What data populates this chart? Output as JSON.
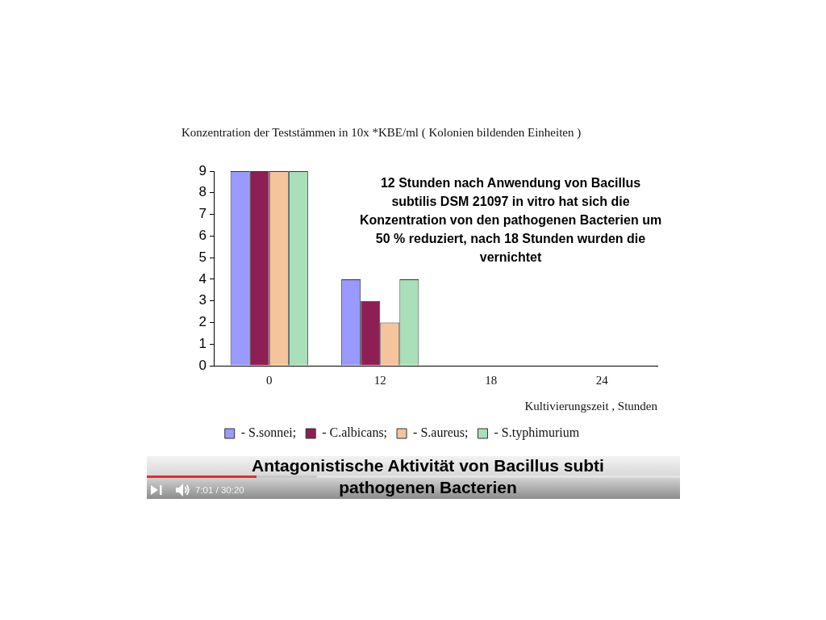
{
  "chart_data": {
    "type": "bar",
    "title": "Antagonistische Aktivität von Bacillus subti\npathogenen Bacterien",
    "ylabel": "Konzentration der Teststämmen in 10x *KBE/ml ( Kolonien bildenden Einheiten )",
    "xlabel": "Kultivierungszeit , Stunden",
    "categories": [
      "0",
      "12",
      "18",
      "24"
    ],
    "series": [
      {
        "name": "- S.sonnei;",
        "color": "#9999ff",
        "values": [
          9,
          4,
          0,
          0
        ]
      },
      {
        "name": "- C.albicans;",
        "color": "#8e1f55",
        "values": [
          9,
          3,
          0,
          0
        ]
      },
      {
        "name": "- S.aureus;",
        "color": "#f4c49c",
        "values": [
          9,
          2,
          0,
          0
        ]
      },
      {
        "name": "- S.typhimurium",
        "color": "#a9dfb9",
        "values": [
          9,
          4,
          0,
          0
        ]
      }
    ],
    "ylim": [
      0,
      9
    ],
    "yticks": [
      0,
      1,
      2,
      3,
      4,
      5,
      6,
      7,
      8,
      9
    ],
    "grid": false,
    "legend": "bottom",
    "annotations": [
      "12 Stunden nach Anwendung von Bacillus\nsubtilis DSM 21097 in vitro hat sich die\nKonzentration von den pathogenen Bacterien um\n50 % reduziert, nach 18 Stunden wurden die\nvernichtet",
      "7:01 / 30:20"
    ]
  }
}
